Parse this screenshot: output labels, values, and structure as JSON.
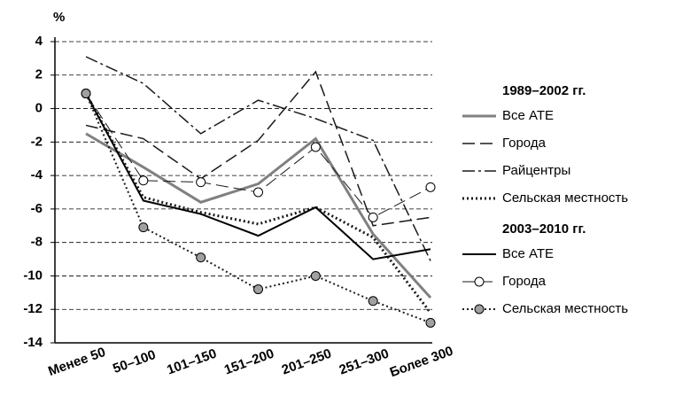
{
  "chart_data": {
    "type": "line",
    "y_label": "%",
    "categories": [
      "Менее 50",
      "50–100",
      "101–150",
      "151–200",
      "201–250",
      "251–300",
      "Более 300"
    ],
    "ylim": [
      -14,
      4
    ],
    "yticks": [
      -14,
      -12,
      -10,
      -8,
      -6,
      -4,
      -2,
      0,
      2,
      4
    ],
    "grid": true,
    "series_groups": [
      {
        "title": "1989–2002 гг.",
        "series": [
          {
            "name": "Все АТЕ",
            "color": "#808080",
            "line_style": "solid",
            "width": 3,
            "values": [
              -1.5,
              -3.5,
              -5.6,
              -4.5,
              -1.8,
              -7.5,
              -11.3
            ]
          },
          {
            "name": "Города",
            "color": "#1a1a1a",
            "line_style": "dashed",
            "width": 1.5,
            "values": [
              -1.0,
              -1.8,
              -4.2,
              -1.9,
              2.2,
              -7.0,
              -6.5
            ]
          },
          {
            "name": "Райцентры",
            "color": "#1a1a1a",
            "line_style": "dashdot",
            "width": 1.5,
            "values": [
              3.1,
              1.5,
              -1.5,
              0.5,
              -0.6,
              -1.9,
              -9.1
            ]
          },
          {
            "name": "Сельская местность",
            "color": "#1a1a1a",
            "line_style": "dotted",
            "width": 3,
            "values": [
              0.9,
              -5.3,
              -6.2,
              -6.9,
              -5.9,
              -7.7,
              -12.2
            ]
          }
        ]
      },
      {
        "title": "2003–2010 гг.",
        "series": [
          {
            "name": "Все АТЕ",
            "color": "#000000",
            "line_style": "solid",
            "width": 2,
            "values": [
              0.9,
              -5.5,
              -6.3,
              -7.6,
              -5.9,
              -9.0,
              -8.4
            ]
          },
          {
            "name": "Города",
            "color": "#1a1a1a",
            "line_style": "dashed",
            "width": 1,
            "marker": "circle",
            "marker_fill": "#ffffff",
            "values": [
              0.9,
              -4.3,
              -4.4,
              -5.0,
              -2.3,
              -6.5,
              -4.7
            ]
          },
          {
            "name": "Сельская местность",
            "color": "#1a1a1a",
            "line_style": "dotted",
            "width": 2,
            "marker": "circle",
            "marker_fill": "#a0a0a0",
            "values": [
              0.9,
              -7.1,
              -8.9,
              -10.8,
              -10.0,
              -11.5,
              -12.8
            ]
          }
        ]
      }
    ]
  }
}
